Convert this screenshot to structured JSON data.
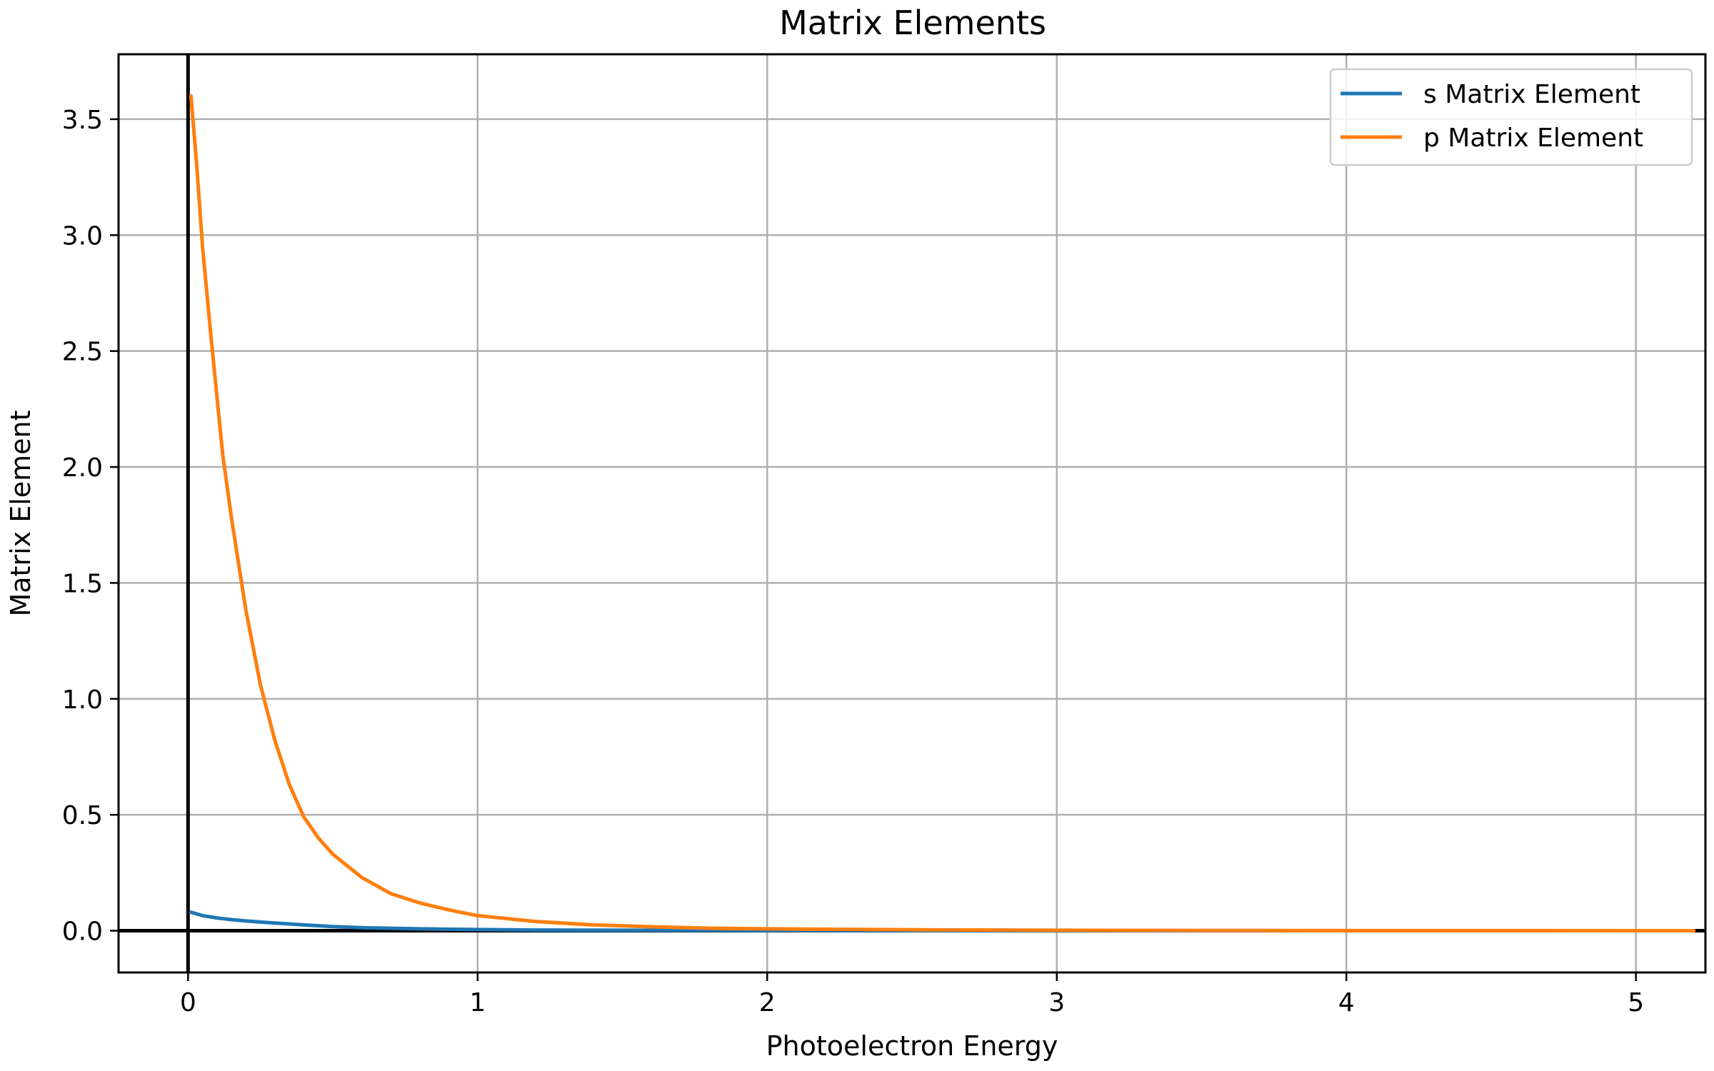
{
  "chart_data": {
    "type": "line",
    "title": "Matrix Elements",
    "xlabel": "Photoelectron Energy",
    "ylabel": "Matrix Element",
    "xlim": [
      -0.24,
      5.24
    ],
    "ylim": [
      -0.18,
      3.78
    ],
    "xticks": [
      0,
      1,
      2,
      3,
      4,
      5
    ],
    "yticks": [
      0.0,
      0.5,
      1.0,
      1.5,
      2.0,
      2.5,
      3.0,
      3.5
    ],
    "xtick_labels": [
      "0",
      "1",
      "2",
      "3",
      "4",
      "5"
    ],
    "ytick_labels": [
      "0.0",
      "0.5",
      "1.0",
      "1.5",
      "2.0",
      "2.5",
      "3.0",
      "3.5"
    ],
    "grid": true,
    "reference_lines": {
      "x": 0,
      "y": 0
    },
    "legend_position": "top-right",
    "series": [
      {
        "name": "s Matrix Element",
        "color": "#1f77b4",
        "x": [
          0.01,
          0.05,
          0.1,
          0.15,
          0.2,
          0.3,
          0.4,
          0.5,
          0.6,
          0.8,
          1.0,
          1.2,
          1.5,
          2.0,
          2.5,
          3.0,
          3.5,
          4.0,
          4.5,
          5.2
        ],
        "y": [
          0.08,
          0.065,
          0.055,
          0.048,
          0.042,
          0.033,
          0.025,
          0.018,
          0.013,
          0.008,
          0.005,
          0.003,
          0.002,
          0.001,
          0.0005,
          0.0003,
          0.0002,
          0.0001,
          0.0001,
          0.0
        ]
      },
      {
        "name": "p Matrix Element",
        "color": "#ff7f0e",
        "x": [
          0.01,
          0.03,
          0.05,
          0.08,
          0.1,
          0.12,
          0.15,
          0.2,
          0.25,
          0.3,
          0.35,
          0.4,
          0.45,
          0.5,
          0.6,
          0.7,
          0.8,
          0.9,
          1.0,
          1.2,
          1.4,
          1.6,
          1.8,
          2.0,
          2.5,
          3.0,
          3.5,
          4.0,
          4.5,
          5.2
        ],
        "y": [
          3.6,
          3.3,
          2.95,
          2.55,
          2.3,
          2.05,
          1.78,
          1.38,
          1.06,
          0.82,
          0.63,
          0.49,
          0.4,
          0.33,
          0.23,
          0.16,
          0.12,
          0.09,
          0.065,
          0.04,
          0.025,
          0.017,
          0.011,
          0.008,
          0.004,
          0.002,
          0.001,
          0.0005,
          0.0003,
          0.0001
        ]
      }
    ]
  }
}
